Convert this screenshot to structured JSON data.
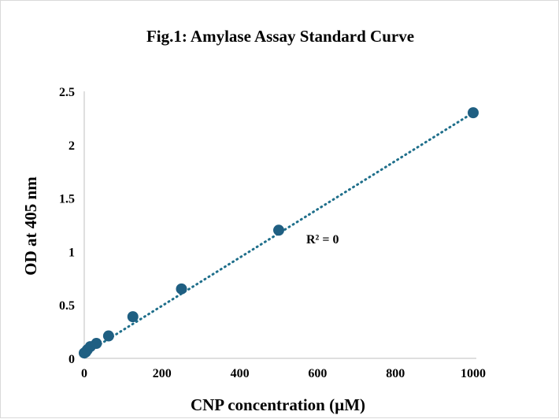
{
  "chart_data": {
    "type": "scatter",
    "title": "Fig.1: Amylase Assay Standard Curve",
    "xlabel": "CNP concentration (µM)",
    "ylabel": "OD at 405 nm",
    "xlim": [
      0,
      1000
    ],
    "ylim": [
      0,
      2.5
    ],
    "xticks": [
      "0",
      "200",
      "400",
      "600",
      "800",
      "1000"
    ],
    "yticks": [
      "0",
      "0.5",
      "1",
      "1.5",
      "2",
      "2.5"
    ],
    "grid": false,
    "legend": "none",
    "marker_color": "#1f5f82",
    "trendline": {
      "style": "dotted",
      "color": "#1f6f8b",
      "x": [
        0,
        1000
      ],
      "y": [
        0.04,
        2.3
      ]
    },
    "annotation": "R² = 0",
    "points": {
      "x": [
        0,
        3.9,
        7.8,
        15.6,
        31.25,
        62.5,
        125,
        250,
        500,
        1000
      ],
      "y": [
        0.05,
        0.06,
        0.08,
        0.11,
        0.14,
        0.21,
        0.39,
        0.65,
        1.2,
        2.3
      ]
    }
  }
}
